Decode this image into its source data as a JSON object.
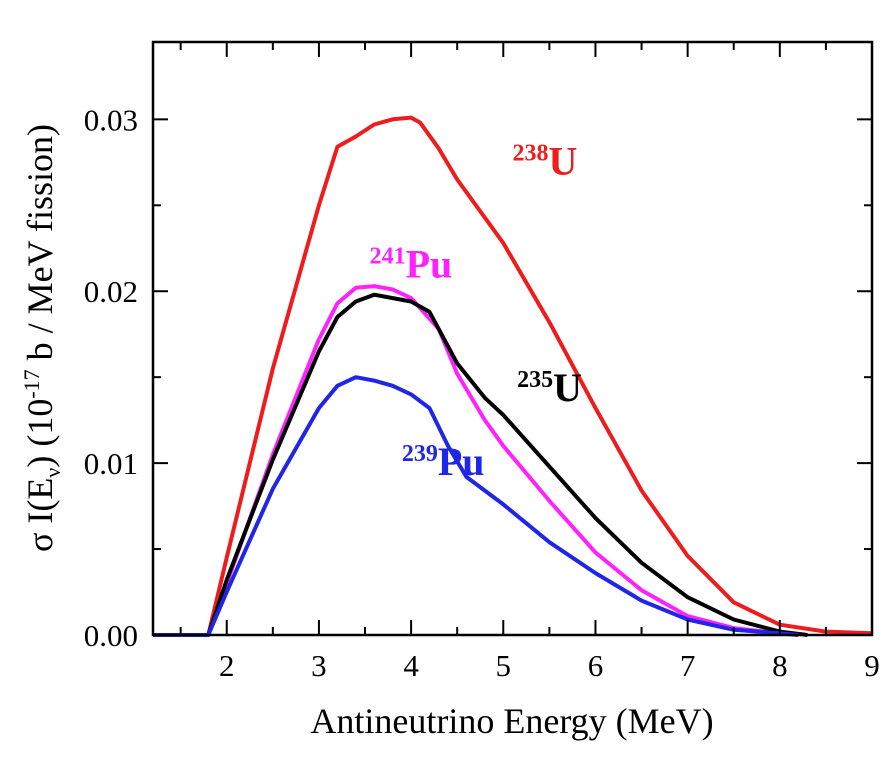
{
  "chart_data": {
    "type": "line",
    "xlabel": "Antineutrino Energy (MeV)",
    "ylabel": {
      "prefix": "σ I(E",
      "sub": "ν",
      "mid": ") (10",
      "sup": "-17",
      "suffix": " b / MeV fission)"
    },
    "xlim": [
      1.2,
      9
    ],
    "ylim": [
      0,
      0.0345
    ],
    "x_ticks": [
      "2",
      "3",
      "4",
      "5",
      "6",
      "7",
      "8",
      "9"
    ],
    "y_ticks": [
      "0.00",
      "0.01",
      "0.02",
      "0.03"
    ],
    "grid": false,
    "series": [
      {
        "name": "238U",
        "isotope": "238",
        "element": "U",
        "color": "#ee1c1c",
        "x": [
          1.2,
          1.8,
          2.0,
          2.5,
          3.0,
          3.2,
          3.4,
          3.6,
          3.8,
          4.0,
          4.1,
          4.3,
          4.5,
          5.0,
          5.5,
          6.0,
          6.5,
          7.0,
          7.5,
          8.0,
          8.5,
          9.0
        ],
        "values": [
          0,
          0,
          0.0045,
          0.0155,
          0.025,
          0.0284,
          0.029,
          0.0297,
          0.03,
          0.0301,
          0.0298,
          0.0283,
          0.0265,
          0.0228,
          0.0182,
          0.0132,
          0.0084,
          0.0046,
          0.0019,
          0.0006,
          0.0002,
          0.0001
        ]
      },
      {
        "name": "241Pu",
        "isotope": "241",
        "element": "Pu",
        "color": "#ff22ff",
        "x": [
          1.2,
          1.8,
          2.0,
          2.5,
          3.0,
          3.2,
          3.4,
          3.6,
          3.8,
          4.0,
          4.3,
          4.5,
          4.8,
          5.0,
          5.5,
          6.0,
          6.5,
          7.0,
          7.5,
          8.0,
          8.2
        ],
        "values": [
          0,
          0,
          0.003,
          0.0105,
          0.0172,
          0.0193,
          0.0202,
          0.0203,
          0.0201,
          0.0196,
          0.0178,
          0.0152,
          0.0125,
          0.011,
          0.0078,
          0.0048,
          0.0026,
          0.0011,
          0.0004,
          0.0001,
          0
        ]
      },
      {
        "name": "235U",
        "isotope": "235",
        "element": "U",
        "color": "#000000",
        "x": [
          1.2,
          1.8,
          2.0,
          2.5,
          3.0,
          3.2,
          3.4,
          3.6,
          3.8,
          4.0,
          4.2,
          4.5,
          4.8,
          5.0,
          5.5,
          6.0,
          6.5,
          7.0,
          7.5,
          8.0,
          8.3
        ],
        "values": [
          0,
          0,
          0.0032,
          0.0102,
          0.0165,
          0.0185,
          0.0194,
          0.0198,
          0.0196,
          0.0194,
          0.0188,
          0.0158,
          0.0138,
          0.0128,
          0.0098,
          0.0068,
          0.0042,
          0.0022,
          0.0009,
          0.0002,
          0
        ]
      },
      {
        "name": "239Pu",
        "isotope": "239",
        "element": "Pu",
        "color": "#1f26e6",
        "x": [
          1.2,
          1.8,
          2.0,
          2.5,
          3.0,
          3.2,
          3.4,
          3.6,
          3.8,
          4.0,
          4.2,
          4.4,
          4.6,
          5.0,
          5.5,
          6.0,
          6.5,
          7.0,
          7.5,
          8.0,
          8.2
        ],
        "values": [
          0,
          0,
          0.0025,
          0.0085,
          0.0132,
          0.0145,
          0.015,
          0.0148,
          0.0145,
          0.014,
          0.0132,
          0.011,
          0.0092,
          0.0076,
          0.0054,
          0.0036,
          0.002,
          0.0009,
          0.0003,
          0.0001,
          0
        ]
      }
    ],
    "labels": [
      {
        "series": "238U",
        "isotope": "238",
        "element": "U",
        "color": "#ee1c1c",
        "at_x": 5.1,
        "at_y": 0.0268
      },
      {
        "series": "241Pu",
        "isotope": "241",
        "element": "Pu",
        "color": "#ff22ff",
        "at_x": 3.55,
        "at_y": 0.0208
      },
      {
        "series": "235U",
        "isotope": "235",
        "element": "U",
        "color": "#000000",
        "at_x": 5.15,
        "at_y": 0.0136
      },
      {
        "series": "239Pu",
        "isotope": "239",
        "element": "Pu",
        "color": "#1f26e6",
        "at_x": 3.9,
        "at_y": 0.0093
      }
    ]
  }
}
